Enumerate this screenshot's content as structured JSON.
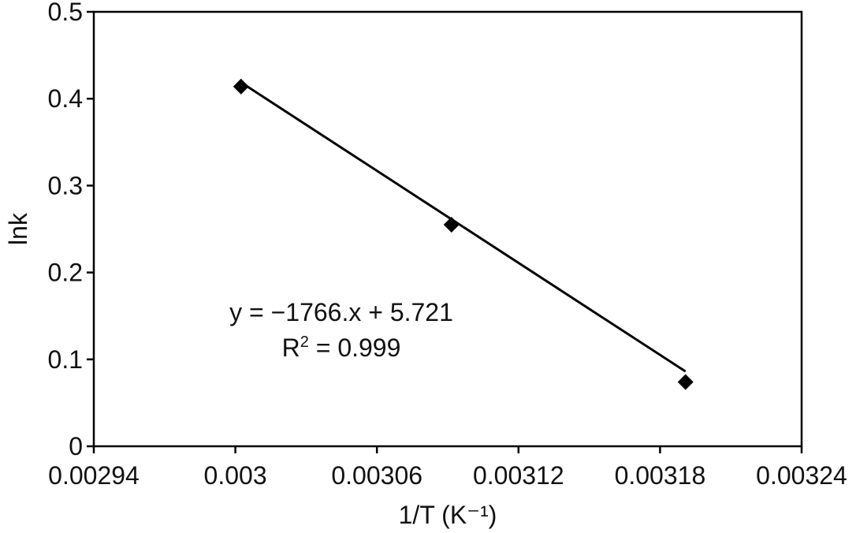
{
  "chart_data": {
    "type": "scatter",
    "title": "",
    "xlabel": "1/T (K⁻¹)",
    "ylabel": "lnk",
    "xlim": [
      0.00294,
      0.00324
    ],
    "ylim": [
      0,
      0.5
    ],
    "x_ticks": [
      0.00294,
      0.003,
      0.00306,
      0.00312,
      0.00318,
      0.00324
    ],
    "x_tick_labels": [
      "0.00294",
      "0.003",
      "0.00306",
      "0.00312",
      "0.00318",
      "0.00324"
    ],
    "y_ticks": [
      0,
      0.1,
      0.2,
      0.3,
      0.4,
      0.5
    ],
    "y_tick_labels": [
      "0",
      "0.1",
      "0.2",
      "0.3",
      "0.4",
      "0.5"
    ],
    "grid": false,
    "legend": "none",
    "marker": "diamond",
    "colors": {
      "marker": "#000000",
      "line": "#000000",
      "axis": "#000000"
    },
    "series": [
      {
        "x": [
          0.0030024,
          0.0030916,
          0.0031908
        ],
        "y": [
          0.414,
          0.255,
          0.074
        ]
      }
    ],
    "trendline": {
      "type": "linear",
      "slope": -1766,
      "intercept": 5.721,
      "x_range": [
        0.0030024,
        0.0031908
      ]
    },
    "annotations": {
      "equation": "y = −1766.x + 5.721",
      "r2_label": "R",
      "r2_sup": "2",
      "r2_value": " = 0.999"
    }
  }
}
